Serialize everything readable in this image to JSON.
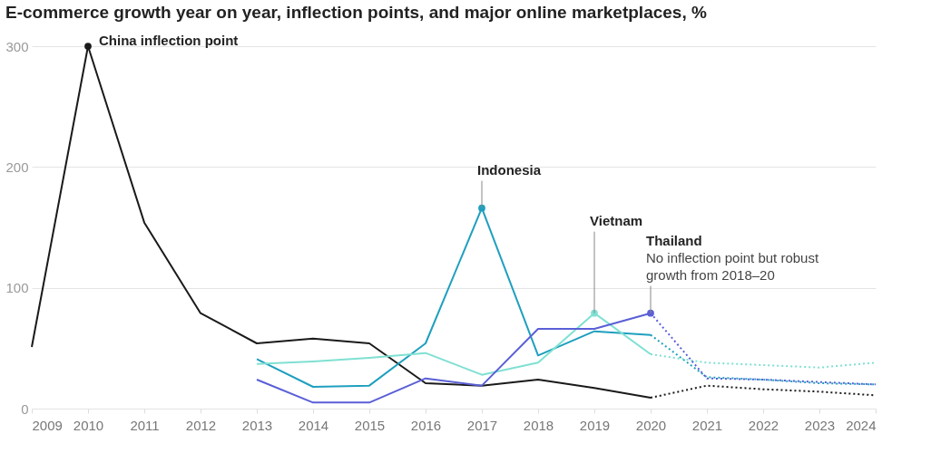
{
  "chart_data": {
    "type": "line",
    "title": "E-commerce growth year on year, inflection points, and major online marketplaces, %",
    "xlim": [
      2009,
      2024
    ],
    "xticks": [
      2009,
      2010,
      2011,
      2012,
      2013,
      2014,
      2015,
      2016,
      2017,
      2018,
      2019,
      2020,
      2021,
      2022,
      2023,
      2024
    ],
    "ylim": [
      0,
      300
    ],
    "yticks": [
      0,
      100,
      200,
      300
    ],
    "grid": "y",
    "series": [
      {
        "color": "#1a1a1a",
        "line_style": "solid",
        "x": [
          2009,
          2010,
          2011,
          2012,
          2013,
          2014,
          2015,
          2016,
          2017,
          2018,
          2019,
          2020
        ],
        "values": [
          51,
          300,
          154,
          79,
          54,
          58,
          54,
          21,
          19,
          24,
          17,
          9
        ]
      },
      {
        "color": "#1f9fbf",
        "line_style": "solid",
        "x": [
          2013,
          2014,
          2015,
          2016,
          2017,
          2018,
          2019,
          2020
        ],
        "values": [
          41,
          18,
          19,
          54,
          166,
          44,
          64,
          61
        ]
      },
      {
        "color": "#7fe0d2",
        "line_style": "solid",
        "x": [
          2013,
          2014,
          2015,
          2016,
          2017,
          2018,
          2019,
          2020
        ],
        "values": [
          37,
          39,
          42,
          46,
          28,
          38,
          79,
          45
        ]
      },
      {
        "color": "#5a5fd6",
        "line_style": "solid",
        "x": [
          2013,
          2014,
          2015,
          2016,
          2017,
          2018,
          2019,
          2020
        ],
        "values": [
          24,
          5,
          5,
          25,
          19,
          66,
          66,
          79
        ]
      },
      {
        "color": "#1a1a1a",
        "line_style": "dotted",
        "x": [
          2020,
          2021,
          2022,
          2023,
          2024
        ],
        "values": [
          9,
          19,
          16,
          14,
          11
        ]
      },
      {
        "color": "#1f9fbf",
        "line_style": "dotted",
        "x": [
          2020,
          2021,
          2022,
          2023,
          2024
        ],
        "values": [
          61,
          26,
          24,
          21,
          20
        ]
      },
      {
        "color": "#7fe0d2",
        "line_style": "dotted",
        "x": [
          2020,
          2021,
          2022,
          2023,
          2024
        ],
        "values": [
          45,
          38,
          36,
          34,
          38
        ]
      },
      {
        "color": "#5a5fd6",
        "line_style": "dotted",
        "x": [
          2020,
          2021,
          2022,
          2023,
          2024
        ],
        "values": [
          79,
          25,
          24,
          22,
          20
        ]
      }
    ],
    "annotations": [
      {
        "text": "China inflection point",
        "x": 2010,
        "y": 300
      },
      {
        "text": "Indonesia",
        "x": 2017,
        "y": 166
      },
      {
        "text": "Vietnam",
        "x": 2019,
        "y": 79
      },
      {
        "text": "Thailand\nNo inflection point but robust\ngrowth from 2018–20",
        "x": 2020,
        "y": 79
      }
    ]
  }
}
